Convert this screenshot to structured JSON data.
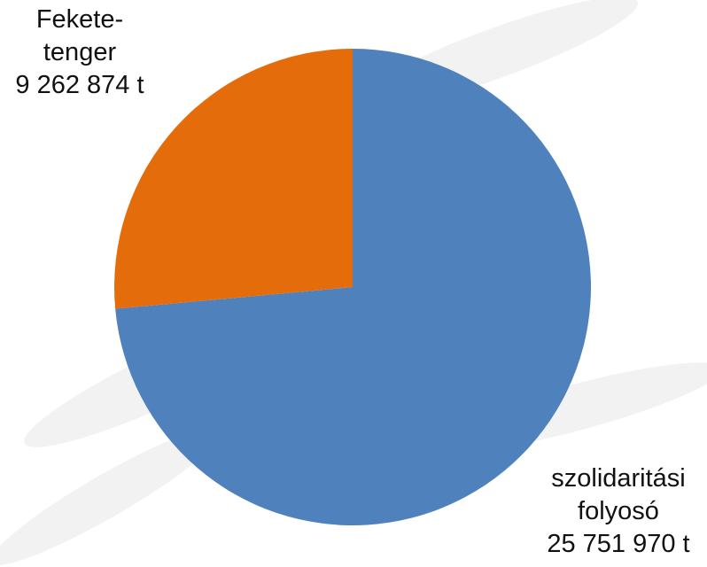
{
  "chart_data": {
    "type": "pie",
    "categories": [
      "szolidaritási folyosó",
      "Fekete-tenger"
    ],
    "values": [
      25751970,
      9262874
    ],
    "value_labels": [
      "25 751 970 t",
      "9 262 874 t"
    ],
    "colors": [
      "#4f81bd",
      "#e46c0a"
    ]
  }
}
